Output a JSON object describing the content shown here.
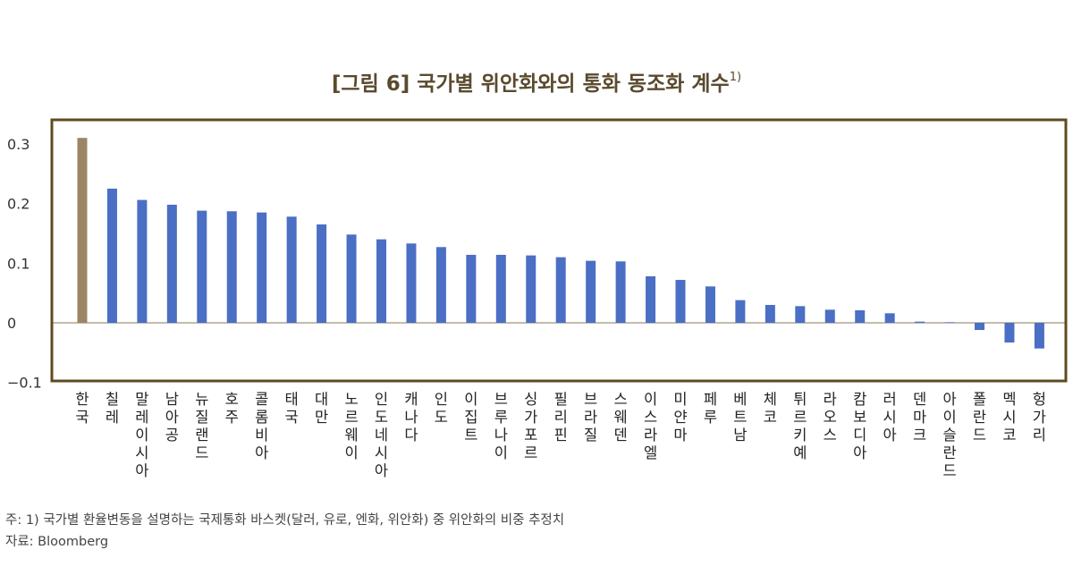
{
  "title": "[그림 6] 국가별 위안화와의 통화 동조화 계수",
  "title_footnote_mark": "1)",
  "chart_data": {
    "type": "bar",
    "categories": [
      "한국",
      "칠레",
      "말레이시아",
      "남아공",
      "뉴질랜드",
      "호주",
      "콜롬비아",
      "태국",
      "대만",
      "노르웨이",
      "인도네시아",
      "캐나다",
      "인도",
      "이집트",
      "브루나이",
      "싱가포르",
      "필리핀",
      "브라질",
      "스웨덴",
      "이스라엘",
      "미얀마",
      "페루",
      "베트남",
      "체코",
      "튀르키예",
      "라오스",
      "캄보디아",
      "러시아",
      "덴마크",
      "아이슬란드",
      "폴란드",
      "멕시코",
      "헝가리"
    ],
    "values": [
      0.31,
      0.225,
      0.206,
      0.198,
      0.188,
      0.187,
      0.185,
      0.178,
      0.165,
      0.148,
      0.14,
      0.133,
      0.127,
      0.114,
      0.114,
      0.113,
      0.11,
      0.104,
      0.103,
      0.078,
      0.072,
      0.061,
      0.038,
      0.03,
      0.028,
      0.022,
      0.021,
      0.016,
      0.002,
      0.001,
      -0.012,
      -0.033,
      -0.043
    ],
    "highlight_index": 0,
    "colors": {
      "highlight": "#9b8564",
      "default": "#4a6fc4",
      "frame": "#5f4a1f"
    },
    "yticks": [
      "0.3",
      "0.2",
      "0.1",
      "0",
      "−0.1"
    ],
    "ytick_values": [
      0.3,
      0.2,
      0.1,
      0,
      -0.1
    ],
    "ylim": [
      -0.1,
      0.33
    ],
    "title": "[그림 6] 국가별 위안화와의 통화 동조화 계수",
    "xlabel": "",
    "ylabel": ""
  },
  "notes": {
    "footnote": "주: 1) 국가별 환율변동을 설명하는 국제통화 바스켓(달러, 유로, 엔화, 위안화) 중 위안화의 비중 추정치",
    "source": "자료: Bloomberg"
  }
}
